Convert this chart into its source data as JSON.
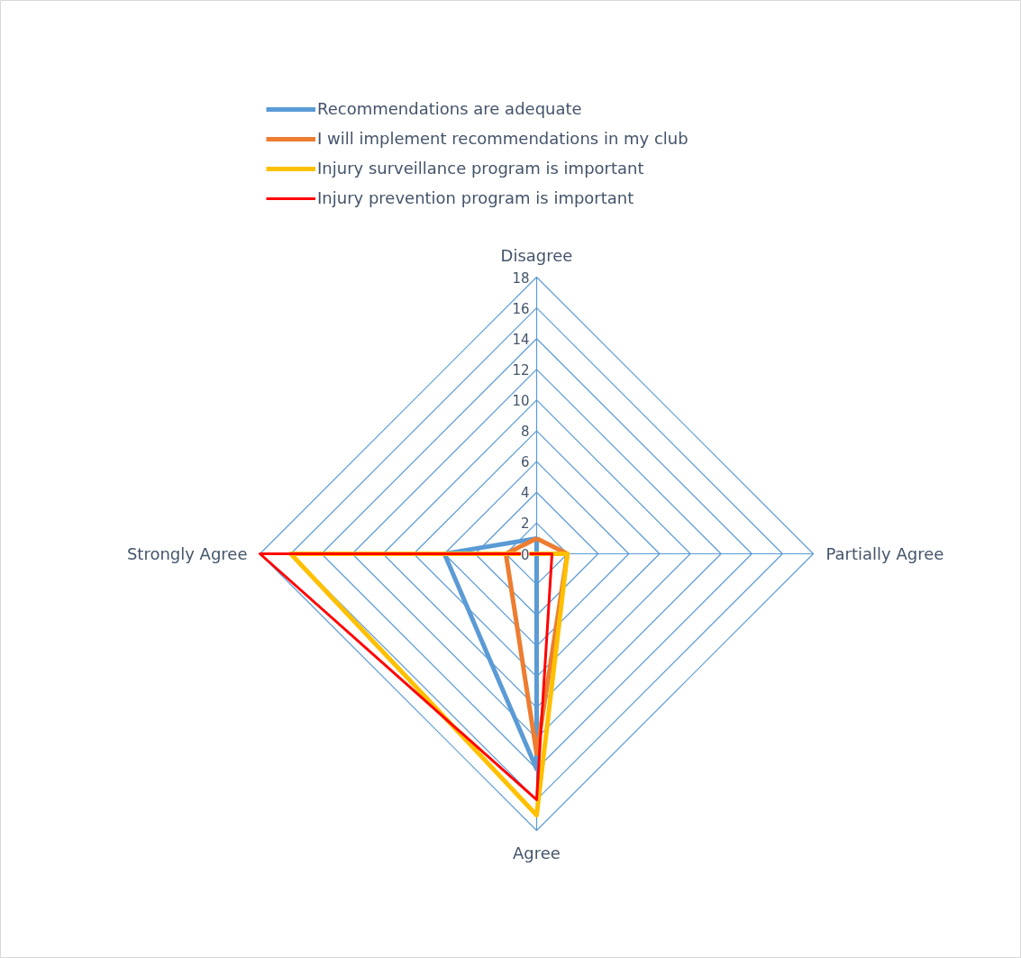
{
  "chart_data": {
    "type": "radar",
    "categories": [
      "Disagree",
      "Partially Agree",
      "Agree",
      "Strongly Agree"
    ],
    "series": [
      {
        "name": "Recommendations are adequate",
        "color": "#5b9bd5",
        "values": [
          1,
          0,
          14,
          6
        ]
      },
      {
        "name": "I will implement recommendations in my club",
        "color": "#ed7d31",
        "values": [
          1,
          2,
          13,
          2
        ]
      },
      {
        "name": "Injury surveillance program is important",
        "color": "#ffc000",
        "values": [
          0,
          2,
          17,
          16
        ]
      },
      {
        "name": "Injury prevention program is important",
        "color": "#ff0000",
        "values": [
          0,
          1,
          16,
          18
        ]
      }
    ],
    "ylim": [
      0,
      18
    ],
    "yticks": [
      0,
      2,
      4,
      6,
      8,
      10,
      12,
      14,
      16,
      18
    ],
    "grid": true,
    "legend": "top"
  }
}
